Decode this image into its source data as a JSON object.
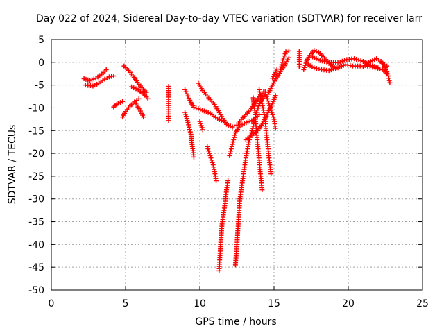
{
  "chart_data": {
    "type": "scatter",
    "title": "Day 022 of 2024, Sidereal Day-to-day VTEC variation (SDTVAR) for receiver larr",
    "xlabel": "GPS time / hours",
    "ylabel": "SDTVAR / TECUs",
    "xlim": [
      0,
      25
    ],
    "ylim": [
      -50,
      5
    ],
    "xticks": [
      0,
      5,
      10,
      15,
      20,
      25
    ],
    "yticks": [
      5,
      0,
      -5,
      -10,
      -15,
      -20,
      -25,
      -30,
      -35,
      -40,
      -45,
      -50
    ],
    "grid": true,
    "marker": "+",
    "marker_color": "#ff0000",
    "series": [
      {
        "segments": [
          [
            [
              2.2,
              -3.6
            ],
            [
              2.6,
              -4.0
            ],
            [
              3.0,
              -3.5
            ],
            [
              3.4,
              -2.6
            ],
            [
              3.7,
              -1.6
            ]
          ],
          [
            [
              2.3,
              -5.0
            ],
            [
              2.8,
              -5.2
            ],
            [
              3.2,
              -4.6
            ],
            [
              3.6,
              -3.7
            ],
            [
              3.9,
              -3.2
            ],
            [
              4.2,
              -3.0
            ]
          ],
          [
            [
              4.8,
              -12.0
            ],
            [
              5.0,
              -10.8
            ],
            [
              5.3,
              -9.6
            ],
            [
              5.6,
              -8.7
            ],
            [
              5.9,
              -8.0
            ]
          ],
          [
            [
              4.9,
              -0.8
            ],
            [
              5.2,
              -1.8
            ],
            [
              5.5,
              -3.0
            ],
            [
              5.8,
              -4.4
            ],
            [
              6.1,
              -5.6
            ],
            [
              6.4,
              -6.6
            ]
          ],
          [
            [
              5.4,
              -5.4
            ],
            [
              5.7,
              -5.8
            ],
            [
              6.0,
              -6.4
            ],
            [
              6.3,
              -7.2
            ],
            [
              6.5,
              -8.0
            ]
          ],
          [
            [
              5.7,
              -9.0
            ],
            [
              5.9,
              -10.2
            ],
            [
              6.1,
              -11.2
            ],
            [
              6.2,
              -12.0
            ]
          ],
          [
            [
              4.2,
              -9.8
            ],
            [
              4.5,
              -9.0
            ],
            [
              4.8,
              -8.6
            ]
          ],
          [
            [
              7.9,
              -5.3
            ],
            [
              7.9,
              -9.5
            ],
            [
              7.9,
              -12.3
            ],
            [
              7.9,
              -12.8
            ]
          ],
          [
            [
              9.0,
              -6.0
            ],
            [
              9.2,
              -7.4
            ],
            [
              9.4,
              -8.8
            ],
            [
              9.6,
              -9.9
            ],
            [
              9.9,
              -10.2
            ],
            [
              10.3,
              -10.7
            ],
            [
              10.7,
              -11.2
            ],
            [
              11.2,
              -12.4
            ],
            [
              11.7,
              -13.2
            ]
          ],
          [
            [
              9.0,
              -11.0
            ],
            [
              9.2,
              -13.2
            ],
            [
              9.4,
              -15.8
            ],
            [
              9.5,
              -18.5
            ],
            [
              9.6,
              -20.8
            ]
          ],
          [
            [
              9.9,
              -4.6
            ],
            [
              10.2,
              -6.2
            ],
            [
              10.6,
              -7.8
            ],
            [
              11.0,
              -9.3
            ],
            [
              11.4,
              -11.5
            ],
            [
              11.8,
              -13.6
            ],
            [
              12.2,
              -14.2
            ]
          ],
          [
            [
              10.0,
              -13.0
            ],
            [
              10.2,
              -14.8
            ]
          ],
          [
            [
              10.5,
              -18.5
            ],
            [
              10.7,
              -20.5
            ],
            [
              10.9,
              -22.5
            ],
            [
              11.0,
              -24.0
            ],
            [
              11.1,
              -26.0
            ]
          ],
          [
            [
              11.3,
              -45.8
            ],
            [
              11.4,
              -40.0
            ],
            [
              11.5,
              -35.5
            ],
            [
              11.7,
              -31.0
            ],
            [
              11.8,
              -28.0
            ],
            [
              11.9,
              -26.0
            ]
          ],
          [
            [
              12.0,
              -20.5
            ],
            [
              12.2,
              -18.0
            ],
            [
              12.4,
              -15.5
            ],
            [
              12.7,
              -14.0
            ],
            [
              13.0,
              -13.4
            ],
            [
              13.5,
              -12.8
            ],
            [
              14.0,
              -11.5
            ]
          ],
          [
            [
              12.4,
              -44.5
            ],
            [
              12.5,
              -40.0
            ],
            [
              12.6,
              -35.0
            ],
            [
              12.7,
              -30.0
            ],
            [
              12.9,
              -25.5
            ],
            [
              13.1,
              -21.0
            ],
            [
              13.3,
              -17.5
            ],
            [
              13.6,
              -14.0
            ],
            [
              13.8,
              -11.0
            ],
            [
              14.1,
              -8.6
            ],
            [
              14.4,
              -7.2
            ]
          ],
          [
            [
              12.5,
              -13.8
            ],
            [
              12.8,
              -12.5
            ],
            [
              13.1,
              -11.5
            ],
            [
              13.4,
              -10.5
            ],
            [
              13.7,
              -9.0
            ],
            [
              14.0,
              -7.6
            ],
            [
              14.3,
              -6.5
            ]
          ],
          [
            [
              13.1,
              -17.0
            ],
            [
              13.5,
              -16.0
            ],
            [
              13.9,
              -15.0
            ],
            [
              14.3,
              -13.0
            ],
            [
              14.6,
              -11.0
            ],
            [
              14.9,
              -9.0
            ],
            [
              15.1,
              -7.3
            ]
          ],
          [
            [
              13.6,
              -7.8
            ],
            [
              13.7,
              -10.5
            ],
            [
              13.8,
              -14.5
            ],
            [
              13.9,
              -18.0
            ],
            [
              14.0,
              -21.5
            ],
            [
              14.1,
              -25.0
            ],
            [
              14.2,
              -28.0
            ]
          ],
          [
            [
              14.0,
              -6.0
            ],
            [
              14.2,
              -9.0
            ],
            [
              14.4,
              -12.5
            ],
            [
              14.5,
              -16.0
            ],
            [
              14.6,
              -19.0
            ],
            [
              14.7,
              -22.0
            ],
            [
              14.8,
              -24.5
            ]
          ],
          [
            [
              14.4,
              -6.5
            ],
            [
              14.6,
              -8.5
            ],
            [
              14.8,
              -10.5
            ],
            [
              15.0,
              -12.5
            ],
            [
              15.1,
              -14.5
            ]
          ],
          [
            [
              14.6,
              -7.0
            ],
            [
              14.9,
              -5.0
            ],
            [
              15.2,
              -3.2
            ],
            [
              15.6,
              -1.2
            ],
            [
              16.0,
              1.0
            ]
          ],
          [
            [
              15.4,
              -2.0
            ],
            [
              15.6,
              0.5
            ],
            [
              15.8,
              2.3
            ],
            [
              16.0,
              2.5
            ]
          ],
          [
            [
              14.9,
              -3.5
            ],
            [
              15.2,
              -1.5
            ]
          ],
          [
            [
              16.7,
              2.4
            ],
            [
              16.7,
              0.2
            ],
            [
              16.7,
              -1.0
            ]
          ],
          [
            [
              17.0,
              -1.6
            ],
            [
              17.2,
              0.3
            ],
            [
              17.4,
              1.5
            ],
            [
              17.7,
              2.6
            ],
            [
              18.0,
              2.2
            ],
            [
              18.4,
              1.0
            ],
            [
              18.8,
              -0.6
            ],
            [
              19.2,
              -1.2
            ]
          ],
          [
            [
              17.3,
              -0.5
            ],
            [
              17.7,
              -1.2
            ],
            [
              18.2,
              -1.6
            ],
            [
              18.7,
              -1.8
            ],
            [
              19.3,
              -1.2
            ],
            [
              19.8,
              -0.5
            ],
            [
              20.3,
              -0.8
            ],
            [
              20.8,
              -0.8
            ]
          ],
          [
            [
              17.6,
              1.2
            ],
            [
              18.1,
              0.4
            ],
            [
              18.7,
              0.0
            ],
            [
              19.3,
              -0.1
            ],
            [
              19.9,
              0.6
            ],
            [
              20.4,
              0.8
            ],
            [
              21.0,
              0.2
            ],
            [
              21.5,
              -0.6
            ],
            [
              22.0,
              -1.2
            ]
          ],
          [
            [
              21.0,
              -1.0
            ],
            [
              21.5,
              0.2
            ],
            [
              21.9,
              0.8
            ],
            [
              22.2,
              0.2
            ],
            [
              22.5,
              -1.2
            ],
            [
              22.7,
              -3.0
            ],
            [
              22.8,
              -4.5
            ]
          ],
          [
            [
              21.3,
              -0.8
            ],
            [
              21.8,
              -1.2
            ],
            [
              22.3,
              -1.6
            ],
            [
              22.6,
              -2.4
            ]
          ],
          [
            [
              22.3,
              -0.2
            ],
            [
              22.6,
              -0.8
            ]
          ]
        ]
      }
    ]
  }
}
